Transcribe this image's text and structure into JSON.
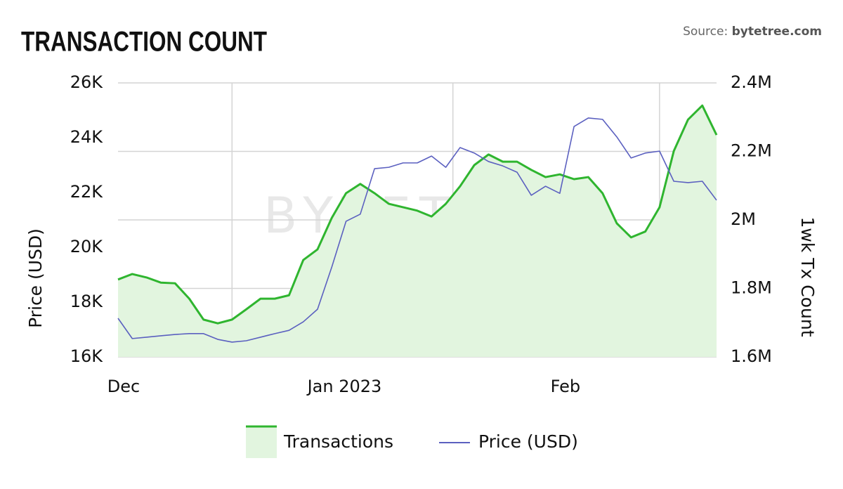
{
  "chart_data": {
    "type": "line",
    "title": "TRANSACTION COUNT",
    "source_label": "Source:",
    "source": "bytetree.com",
    "watermark": "BYTETREE",
    "y_label": "Price (USD)",
    "y2_label": "1wk Tx Count",
    "x": [
      0,
      2,
      4,
      6,
      8,
      10,
      12,
      14,
      16,
      18,
      20,
      22,
      24,
      26,
      28,
      30,
      32,
      34,
      36,
      38,
      40,
      42,
      44,
      46,
      48,
      50,
      52,
      54,
      56,
      58,
      60,
      62,
      64,
      66,
      68,
      70,
      72,
      74,
      76,
      78,
      80,
      82,
      84
    ],
    "xlim": [
      0,
      84
    ],
    "xticks": [
      {
        "value": 0,
        "label": "Dec"
      },
      {
        "value": 31,
        "label": "Jan 2023"
      },
      {
        "value": 62,
        "label": "Feb"
      }
    ],
    "xgrid": [
      16,
      47,
      76
    ],
    "ylim": [
      16000,
      26000
    ],
    "yticks": [
      {
        "value": 16000,
        "label": "16K"
      },
      {
        "value": 18000,
        "label": "18K"
      },
      {
        "value": 20000,
        "label": "20K"
      },
      {
        "value": 22000,
        "label": "22K"
      },
      {
        "value": 24000,
        "label": "24K"
      },
      {
        "value": 26000,
        "label": "26K"
      }
    ],
    "y2lim": [
      1600000,
      2400000
    ],
    "y2ticks": [
      {
        "value": 1600000,
        "label": "1.6M"
      },
      {
        "value": 1800000,
        "label": "1.8M"
      },
      {
        "value": 2000000,
        "label": "2M"
      },
      {
        "value": 2200000,
        "label": "2.2M"
      },
      {
        "value": 2400000,
        "label": "2.4M"
      }
    ],
    "grid": true,
    "series": [
      {
        "name": "Transactions",
        "color": "#2fb52f",
        "fill_color": "#e2f5df",
        "area": true,
        "axis": "y2",
        "values": [
          1826000,
          1842000,
          1832000,
          1817000,
          1815000,
          1770000,
          1709000,
          1698000,
          1709000,
          1739000,
          1770000,
          1770000,
          1780000,
          1883000,
          1914000,
          2006000,
          2078000,
          2105000,
          2078000,
          2047000,
          2037000,
          2027000,
          2010000,
          2047000,
          2098000,
          2160000,
          2191000,
          2170000,
          2170000,
          2146000,
          2125000,
          2133000,
          2119000,
          2125000,
          2078000,
          1990000,
          1949000,
          1966000,
          2037000,
          2201000,
          2293000,
          2334000,
          2248000
        ]
      },
      {
        "name": "Price (USD)",
        "color": "#5b60c0",
        "area": false,
        "axis": "y",
        "values": [
          17410,
          16670,
          16720,
          16770,
          16820,
          16850,
          16850,
          16640,
          16540,
          16590,
          16720,
          16850,
          16970,
          17280,
          17740,
          19280,
          20950,
          21210,
          22870,
          22920,
          23080,
          23080,
          23330,
          22920,
          23640,
          23440,
          23130,
          22970,
          22740,
          21900,
          22230,
          21970,
          24410,
          24720,
          24670,
          24030,
          23260,
          23440,
          23510,
          22410,
          22360,
          22410,
          21720
        ]
      }
    ]
  }
}
